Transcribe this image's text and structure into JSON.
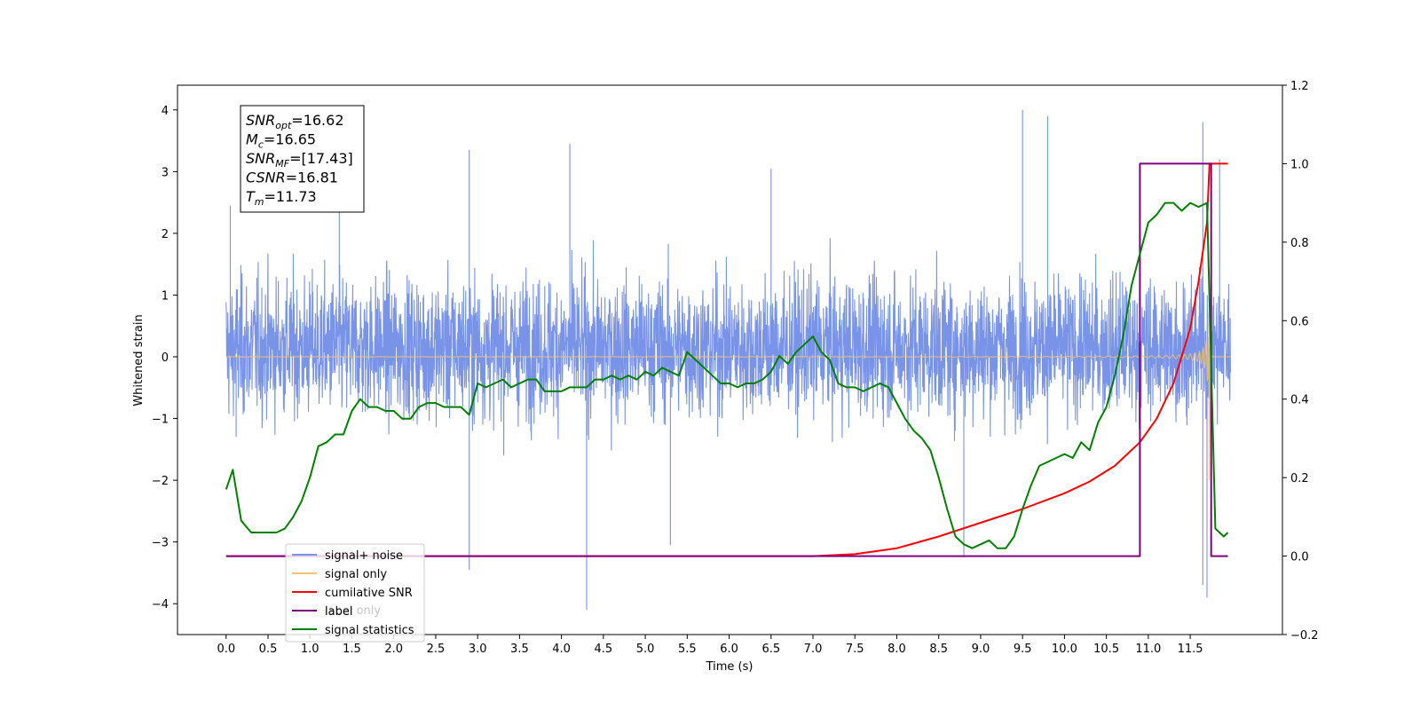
{
  "chart_data": {
    "type": "line",
    "title": "",
    "xlabel": "Time (s)",
    "ylabel_left": "Whitened strain",
    "ylabel_right": "",
    "xlim": [
      -0.58,
      12.6
    ],
    "ylim_left": [
      -4.5,
      4.4
    ],
    "ylim_right": [
      -0.2,
      1.2
    ],
    "x_ticks": [
      "0.0",
      "0.5",
      "1.0",
      "1.5",
      "2.0",
      "2.5",
      "3.0",
      "3.5",
      "4.0",
      "4.5",
      "5.0",
      "5.5",
      "6.0",
      "6.5",
      "7.0",
      "7.5",
      "8.0",
      "8.5",
      "9.0",
      "9.5",
      "10.0",
      "10.5",
      "11.0",
      "11.5"
    ],
    "y_ticks_left": [
      -4,
      -3,
      -2,
      -1,
      0,
      1,
      2,
      3,
      4
    ],
    "y_ticks_right": [
      "−0.2",
      "0.0",
      "0.2",
      "0.4",
      "0.6",
      "0.8",
      "1.0",
      "1.2"
    ],
    "grid": false,
    "legend_position": "lower-left",
    "annotation": {
      "lines": [
        {
          "sym": "SNR",
          "sub": "opt",
          "value": "=16.62"
        },
        {
          "sym": "M",
          "sub": "c",
          "value": "=16.65"
        },
        {
          "sym": "SNR",
          "sub": "MF",
          "value": "=[17.43]"
        },
        {
          "sym": "CSNR",
          "sub": "",
          "value": "=16.81"
        },
        {
          "sym": "T",
          "sub": "m",
          "value": "=11.73"
        }
      ]
    },
    "legend": [
      {
        "label": "signal+ noise",
        "color": "#7893e8"
      },
      {
        "label": "signal only",
        "color": "#f6c46c"
      },
      {
        "label": "cumilative SNR",
        "color": "#ff0000"
      },
      {
        "label": "label",
        "color": "#800080"
      },
      {
        "label": "signal statistics",
        "color": "#008000"
      }
    ],
    "legend_hidden_label": "label only",
    "series": [
      {
        "name": "signal+ noise",
        "axis": "left",
        "color": "#7893e8",
        "description": "whitened strain noise",
        "x_range": [
          0.0,
          11.98
        ],
        "band_typical": [
          -2.0,
          2.2
        ],
        "peaks": [
          [
            0.05,
            2.45
          ],
          [
            1.35,
            2.9
          ],
          [
            2.9,
            3.35
          ],
          [
            4.1,
            3.45
          ],
          [
            6.5,
            3.05
          ],
          [
            9.5,
            4.0
          ],
          [
            9.8,
            3.9
          ],
          [
            11.65,
            3.8
          ],
          [
            11.85,
            3.2
          ]
        ],
        "troughs": [
          [
            0.12,
            -1.3
          ],
          [
            2.9,
            -3.45
          ],
          [
            4.3,
            -4.1
          ],
          [
            5.3,
            -3.05
          ],
          [
            8.8,
            -3.25
          ],
          [
            11.65,
            -3.7
          ],
          [
            11.7,
            -3.9
          ]
        ]
      },
      {
        "name": "signal only",
        "axis": "left",
        "color": "#f6c46c",
        "description": "chirp",
        "x_range": [
          0.0,
          11.98
        ],
        "merger_time": 11.73,
        "peak_amplitude": 3.55
      },
      {
        "name": "cumilative SNR",
        "axis": "right",
        "color": "#ff0000",
        "x": [
          0.0,
          7.0,
          7.5,
          8.0,
          8.5,
          9.0,
          9.5,
          10.0,
          10.3,
          10.6,
          10.9,
          11.1,
          11.3,
          11.5,
          11.6,
          11.7,
          11.73,
          11.8,
          11.95
        ],
        "y": [
          0.0,
          0.0,
          0.005,
          0.02,
          0.05,
          0.085,
          0.12,
          0.16,
          0.19,
          0.23,
          0.29,
          0.35,
          0.44,
          0.58,
          0.7,
          0.85,
          1.0,
          1.0,
          1.0
        ]
      },
      {
        "name": "label",
        "axis": "right",
        "color": "#800080",
        "x": [
          0.0,
          10.9,
          10.9,
          11.65,
          11.75,
          11.75,
          11.95
        ],
        "y": [
          0.0,
          0.0,
          1.0,
          1.0,
          1.0,
          0.0,
          0.0
        ]
      },
      {
        "name": "signal statistics",
        "axis": "right",
        "color": "#008000",
        "x": [
          0.0,
          0.08,
          0.18,
          0.3,
          0.45,
          0.6,
          0.7,
          0.8,
          0.9,
          1.0,
          1.1,
          1.2,
          1.3,
          1.4,
          1.5,
          1.6,
          1.7,
          1.8,
          1.9,
          2.0,
          2.1,
          2.2,
          2.3,
          2.4,
          2.5,
          2.6,
          2.7,
          2.8,
          2.9,
          3.0,
          3.1,
          3.2,
          3.3,
          3.4,
          3.5,
          3.6,
          3.7,
          3.8,
          3.9,
          4.0,
          4.1,
          4.2,
          4.3,
          4.4,
          4.5,
          4.6,
          4.7,
          4.8,
          4.9,
          5.0,
          5.1,
          5.2,
          5.3,
          5.4,
          5.5,
          5.6,
          5.7,
          5.8,
          5.9,
          6.0,
          6.1,
          6.2,
          6.3,
          6.4,
          6.5,
          6.6,
          6.7,
          6.8,
          6.9,
          7.0,
          7.1,
          7.2,
          7.3,
          7.4,
          7.5,
          7.6,
          7.7,
          7.8,
          7.9,
          8.0,
          8.1,
          8.2,
          8.3,
          8.4,
          8.5,
          8.6,
          8.7,
          8.8,
          8.9,
          9.0,
          9.1,
          9.2,
          9.3,
          9.4,
          9.5,
          9.6,
          9.7,
          9.8,
          9.9,
          10.0,
          10.1,
          10.2,
          10.3,
          10.4,
          10.5,
          10.6,
          10.7,
          10.8,
          10.9,
          11.0,
          11.1,
          11.2,
          11.3,
          11.4,
          11.5,
          11.6,
          11.7,
          11.8,
          11.9,
          11.95
        ],
        "y": [
          0.17,
          0.22,
          0.09,
          0.06,
          0.06,
          0.06,
          0.07,
          0.1,
          0.14,
          0.2,
          0.28,
          0.29,
          0.31,
          0.31,
          0.37,
          0.4,
          0.38,
          0.38,
          0.37,
          0.37,
          0.35,
          0.35,
          0.38,
          0.39,
          0.39,
          0.38,
          0.38,
          0.38,
          0.36,
          0.44,
          0.43,
          0.44,
          0.45,
          0.43,
          0.44,
          0.45,
          0.45,
          0.42,
          0.42,
          0.42,
          0.43,
          0.43,
          0.43,
          0.45,
          0.45,
          0.46,
          0.45,
          0.46,
          0.45,
          0.47,
          0.46,
          0.48,
          0.47,
          0.46,
          0.52,
          0.5,
          0.48,
          0.46,
          0.44,
          0.44,
          0.43,
          0.44,
          0.44,
          0.45,
          0.47,
          0.51,
          0.49,
          0.52,
          0.54,
          0.56,
          0.52,
          0.5,
          0.44,
          0.43,
          0.43,
          0.42,
          0.43,
          0.44,
          0.43,
          0.39,
          0.35,
          0.32,
          0.3,
          0.27,
          0.2,
          0.12,
          0.05,
          0.03,
          0.02,
          0.03,
          0.04,
          0.02,
          0.02,
          0.05,
          0.12,
          0.18,
          0.23,
          0.24,
          0.25,
          0.26,
          0.25,
          0.29,
          0.27,
          0.34,
          0.38,
          0.46,
          0.56,
          0.69,
          0.77,
          0.85,
          0.87,
          0.9,
          0.9,
          0.88,
          0.9,
          0.89,
          0.9,
          0.07,
          0.05,
          0.06
        ]
      }
    ]
  }
}
